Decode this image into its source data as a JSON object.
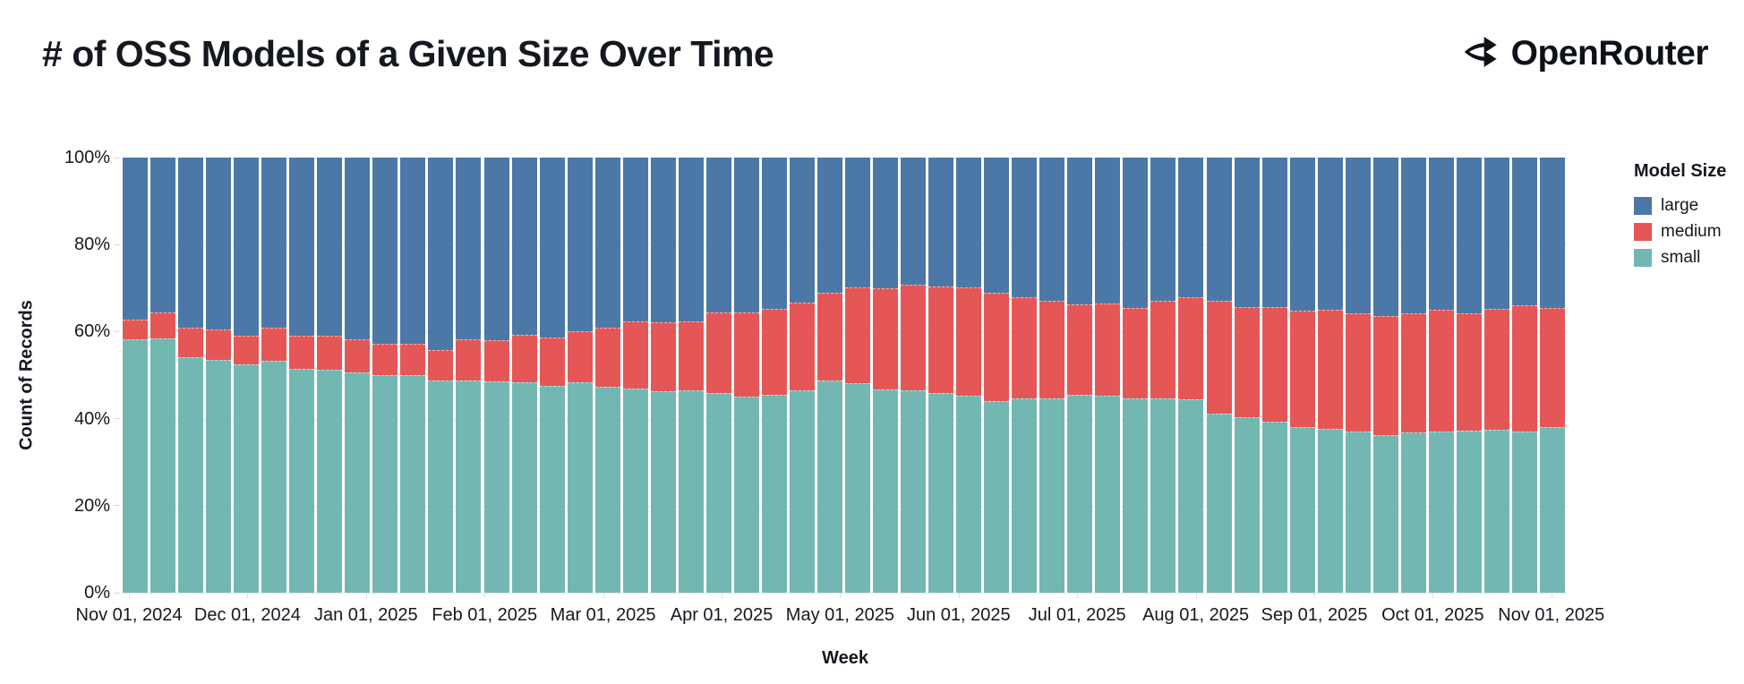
{
  "header": {
    "title": "# of OSS Models of a Given Size Over Time",
    "brand_name": "OpenRouter"
  },
  "chart_data": {
    "type": "bar",
    "variant": "stacked-100-percent-weekly",
    "title": "# of OSS Models of a Given Size Over Time",
    "xlabel": "Week",
    "ylabel": "Count of Records",
    "ylim": [
      0,
      100
    ],
    "y_tick_labels": [
      "0%",
      "20%",
      "40%",
      "60%",
      "80%",
      "100%"
    ],
    "x_tick_labels": [
      "Nov 01, 2024",
      "Dec 01, 2024",
      "Jan 01, 2025",
      "Feb 01, 2025",
      "Mar 01, 2025",
      "Apr 01, 2025",
      "May 01, 2025",
      "Jun 01, 2025",
      "Jul 01, 2025",
      "Aug 01, 2025",
      "Sep 01, 2025",
      "Oct 01, 2025",
      "Nov 01, 2025"
    ],
    "grid": true,
    "legend": {
      "title": "Model Size",
      "position": "right",
      "entries": [
        {
          "label": "large",
          "color": "#4c78a8"
        },
        {
          "label": "medium",
          "color": "#e45756"
        },
        {
          "label": "small",
          "color": "#72b7b2"
        }
      ]
    },
    "stack_order_bottom_to_top": [
      "small",
      "medium",
      "large"
    ],
    "units": "percent of records",
    "weeks": [
      {
        "week": "2024-11-01",
        "small": 58.3,
        "medium": 4.4,
        "large": 37.3
      },
      {
        "week": "2024-11-08",
        "small": 58.5,
        "medium": 6.0,
        "large": 35.5
      },
      {
        "week": "2024-11-15",
        "small": 54.1,
        "medium": 6.9,
        "large": 39.0
      },
      {
        "week": "2024-11-22",
        "small": 53.4,
        "medium": 7.0,
        "large": 39.6
      },
      {
        "week": "2024-11-29",
        "small": 52.5,
        "medium": 6.6,
        "large": 40.9
      },
      {
        "week": "2024-12-06",
        "small": 53.2,
        "medium": 7.8,
        "large": 39.0
      },
      {
        "week": "2024-12-13",
        "small": 51.4,
        "medium": 7.7,
        "large": 40.9
      },
      {
        "week": "2024-12-20",
        "small": 51.2,
        "medium": 7.9,
        "large": 40.9
      },
      {
        "week": "2024-12-27",
        "small": 50.7,
        "medium": 7.6,
        "large": 41.7
      },
      {
        "week": "2025-01-03",
        "small": 49.9,
        "medium": 7.3,
        "large": 42.8
      },
      {
        "week": "2025-01-10",
        "small": 50.1,
        "medium": 7.2,
        "large": 42.7
      },
      {
        "week": "2025-01-17",
        "small": 48.8,
        "medium": 6.9,
        "large": 44.3
      },
      {
        "week": "2025-01-24",
        "small": 48.8,
        "medium": 9.5,
        "large": 41.7
      },
      {
        "week": "2025-01-31",
        "small": 48.5,
        "medium": 9.5,
        "large": 42.0
      },
      {
        "week": "2025-02-07",
        "small": 48.4,
        "medium": 10.8,
        "large": 40.8
      },
      {
        "week": "2025-02-14",
        "small": 47.6,
        "medium": 11.1,
        "large": 41.3
      },
      {
        "week": "2025-02-21",
        "small": 48.4,
        "medium": 11.7,
        "large": 39.9
      },
      {
        "week": "2025-02-28",
        "small": 47.4,
        "medium": 13.5,
        "large": 39.1
      },
      {
        "week": "2025-03-07",
        "small": 46.9,
        "medium": 15.4,
        "large": 37.7
      },
      {
        "week": "2025-03-14",
        "small": 46.2,
        "medium": 15.9,
        "large": 37.9
      },
      {
        "week": "2025-03-21",
        "small": 46.6,
        "medium": 15.7,
        "large": 37.7
      },
      {
        "week": "2025-03-28",
        "small": 45.8,
        "medium": 18.6,
        "large": 35.6
      },
      {
        "week": "2025-04-04",
        "small": 45.1,
        "medium": 19.4,
        "large": 35.5
      },
      {
        "week": "2025-04-11",
        "small": 45.4,
        "medium": 19.8,
        "large": 34.8
      },
      {
        "week": "2025-04-18",
        "small": 46.6,
        "medium": 20.0,
        "large": 33.4
      },
      {
        "week": "2025-04-25",
        "small": 48.8,
        "medium": 20.2,
        "large": 31.0
      },
      {
        "week": "2025-05-02",
        "small": 48.2,
        "medium": 21.9,
        "large": 29.9
      },
      {
        "week": "2025-05-09",
        "small": 46.7,
        "medium": 23.3,
        "large": 30.0
      },
      {
        "week": "2025-05-16",
        "small": 46.5,
        "medium": 24.3,
        "large": 29.2
      },
      {
        "week": "2025-05-23",
        "small": 45.8,
        "medium": 24.6,
        "large": 29.6
      },
      {
        "week": "2025-05-30",
        "small": 45.3,
        "medium": 24.9,
        "large": 29.8
      },
      {
        "week": "2025-06-06",
        "small": 44.1,
        "medium": 24.8,
        "large": 31.1
      },
      {
        "week": "2025-06-13",
        "small": 44.7,
        "medium": 23.1,
        "large": 32.2
      },
      {
        "week": "2025-06-20",
        "small": 44.7,
        "medium": 22.4,
        "large": 32.9
      },
      {
        "week": "2025-06-27",
        "small": 45.4,
        "medium": 20.8,
        "large": 33.8
      },
      {
        "week": "2025-07-04",
        "small": 45.2,
        "medium": 21.3,
        "large": 33.5
      },
      {
        "week": "2025-07-11",
        "small": 44.7,
        "medium": 20.7,
        "large": 34.6
      },
      {
        "week": "2025-07-18",
        "small": 44.7,
        "medium": 22.4,
        "large": 32.9
      },
      {
        "week": "2025-07-25",
        "small": 44.5,
        "medium": 23.5,
        "large": 32.0
      },
      {
        "week": "2025-08-01",
        "small": 41.1,
        "medium": 25.9,
        "large": 33.0
      },
      {
        "week": "2025-08-08",
        "small": 40.3,
        "medium": 25.3,
        "large": 34.4
      },
      {
        "week": "2025-08-15",
        "small": 39.2,
        "medium": 26.4,
        "large": 34.4
      },
      {
        "week": "2025-08-22",
        "small": 38.0,
        "medium": 26.9,
        "large": 35.1
      },
      {
        "week": "2025-08-29",
        "small": 37.7,
        "medium": 27.4,
        "large": 34.9
      },
      {
        "week": "2025-09-05",
        "small": 37.1,
        "medium": 27.0,
        "large": 35.9
      },
      {
        "week": "2025-09-12",
        "small": 36.3,
        "medium": 27.3,
        "large": 36.4
      },
      {
        "week": "2025-09-19",
        "small": 36.9,
        "medium": 27.2,
        "large": 35.9
      },
      {
        "week": "2025-09-26",
        "small": 37.1,
        "medium": 27.9,
        "large": 35.0
      },
      {
        "week": "2025-10-03",
        "small": 37.2,
        "medium": 27.1,
        "large": 35.7
      },
      {
        "week": "2025-10-10",
        "small": 37.4,
        "medium": 27.8,
        "large": 34.8
      },
      {
        "week": "2025-10-17",
        "small": 37.0,
        "medium": 29.1,
        "large": 33.9
      },
      {
        "week": "2025-10-24",
        "small": 38.1,
        "medium": 27.4,
        "large": 34.5
      }
    ]
  },
  "colors": {
    "large": "#4c78a8",
    "medium": "#e45756",
    "small": "#72b7b2",
    "text": "#15181f",
    "grid": "#e6e9ef",
    "tick": "#d7dbe2",
    "background": "#ffffff"
  }
}
